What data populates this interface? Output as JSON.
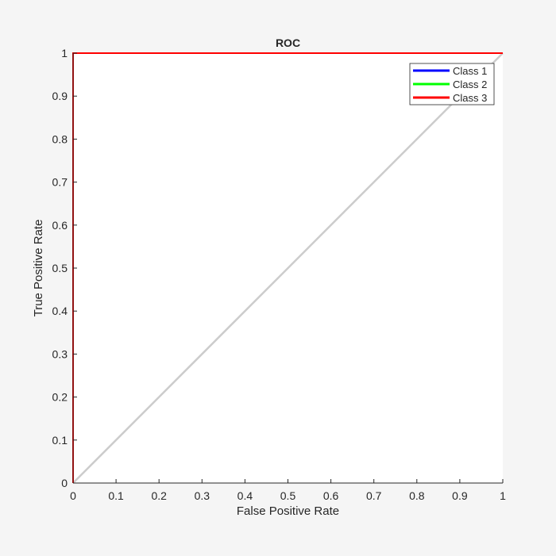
{
  "colors": {
    "figure_background": "#f5f5f5",
    "axes_background": "#ffffff",
    "class1": "#0000ff",
    "class2": "#00ff00",
    "class3": "#ff0000",
    "diagonal": "#cccccc",
    "text": "#262626"
  },
  "chart_data": {
    "type": "line",
    "title": "ROC",
    "xlabel": "False Positive Rate",
    "ylabel": "True Positive Rate",
    "xlim": [
      0,
      1
    ],
    "ylim": [
      0,
      1
    ],
    "grid": false,
    "legend_position": "top-right",
    "xticks": [
      "0",
      "0.1",
      "0.2",
      "0.3",
      "0.4",
      "0.5",
      "0.6",
      "0.7",
      "0.8",
      "0.9",
      "1"
    ],
    "yticks": [
      "0",
      "0.1",
      "0.2",
      "0.3",
      "0.4",
      "0.5",
      "0.6",
      "0.7",
      "0.8",
      "0.9",
      "1"
    ],
    "reference_line": {
      "x": [
        0,
        1
      ],
      "y": [
        0,
        1
      ]
    },
    "series": [
      {
        "name": "Class 1",
        "color": "#0000ff",
        "x": [
          0,
          0,
          1
        ],
        "y": [
          0,
          1,
          1
        ]
      },
      {
        "name": "Class 2",
        "color": "#00ff00",
        "x": [
          0,
          0,
          1
        ],
        "y": [
          0,
          1,
          1
        ]
      },
      {
        "name": "Class 3",
        "color": "#ff0000",
        "x": [
          0,
          0,
          1
        ],
        "y": [
          0,
          1,
          1
        ]
      }
    ]
  }
}
